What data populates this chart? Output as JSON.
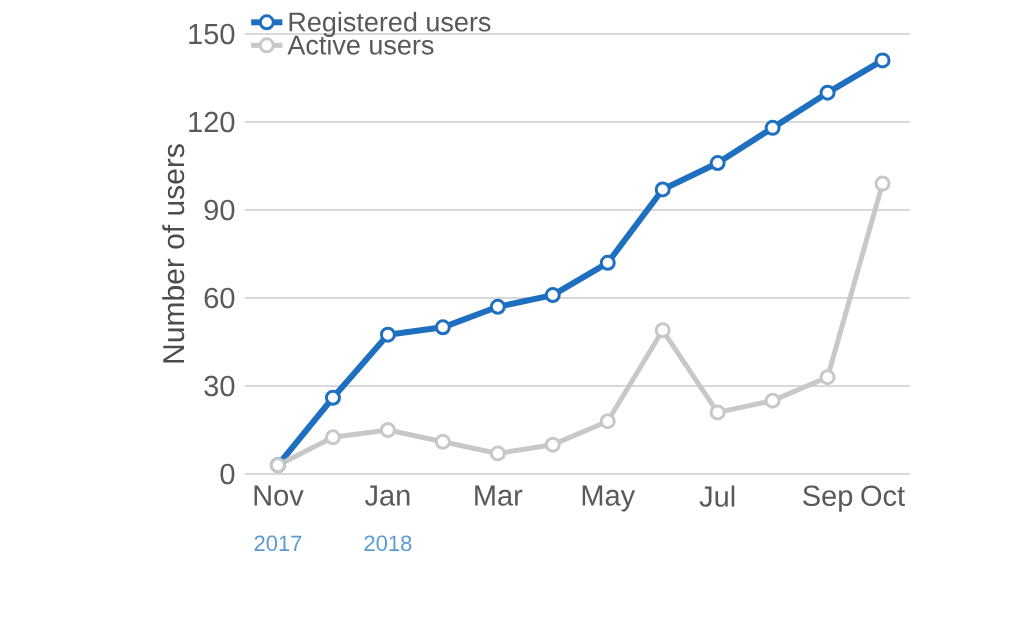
{
  "chart_data": {
    "type": "line",
    "ylabel": "Number of users",
    "categories": [
      "Nov",
      null,
      "Jan",
      null,
      "Mar",
      null,
      "May",
      null,
      "Jul",
      null,
      "Sep",
      "Oct"
    ],
    "series": [
      {
        "name": "Registered users",
        "color": "#1f6fc0",
        "values": [
          3,
          26,
          47.5,
          50,
          57,
          61,
          72,
          97,
          106,
          118,
          130,
          141
        ]
      },
      {
        "name": "Active users",
        "color": "#c8c8c8",
        "values": [
          3,
          12.5,
          15,
          11,
          7,
          10,
          18,
          49,
          21,
          25,
          33,
          99
        ]
      }
    ],
    "ylim": [
      0,
      150
    ],
    "yticks": [
      0,
      30,
      60,
      90,
      120,
      150
    ],
    "grid": "y",
    "legend": "top left",
    "marker": "circle",
    "line_style": "solid",
    "annotations": [
      "2017",
      "2018"
    ]
  }
}
